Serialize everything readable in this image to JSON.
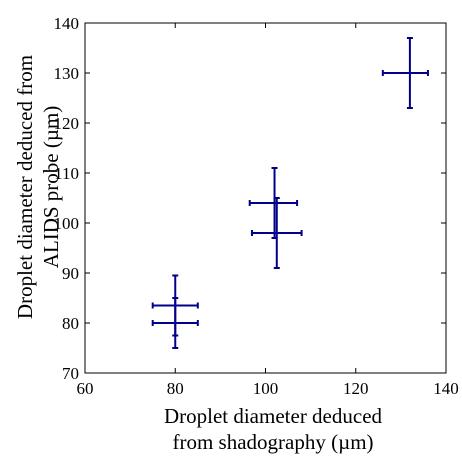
{
  "chart_data": {
    "type": "scatter",
    "xlabel": [
      "Droplet diameter deduced",
      "from shadography (µm)"
    ],
    "ylabel": [
      "Droplet diameter deduced from",
      "ALIDS probe (µm)"
    ],
    "xlim": [
      60,
      140
    ],
    "ylim": [
      70,
      140
    ],
    "xticks": [
      60,
      80,
      100,
      120,
      140
    ],
    "yticks": [
      70,
      80,
      90,
      100,
      110,
      120,
      130,
      140
    ],
    "grid": false,
    "legend": "none",
    "marker_color": "#00008b",
    "points": [
      {
        "x": 80,
        "y": 83.5,
        "x_err": [
          75,
          85
        ],
        "y_err": [
          77.5,
          89.5
        ]
      },
      {
        "x": 80,
        "y": 80,
        "x_err": [
          75,
          85
        ],
        "y_err": [
          75,
          85
        ]
      },
      {
        "x": 102,
        "y": 104,
        "x_err": [
          96.5,
          107
        ],
        "y_err": [
          97,
          111
        ]
      },
      {
        "x": 102.5,
        "y": 98,
        "x_err": [
          97,
          108
        ],
        "y_err": [
          91,
          105
        ]
      },
      {
        "x": 132,
        "y": 130,
        "x_err": [
          126,
          136
        ],
        "y_err": [
          123,
          137
        ]
      }
    ]
  }
}
